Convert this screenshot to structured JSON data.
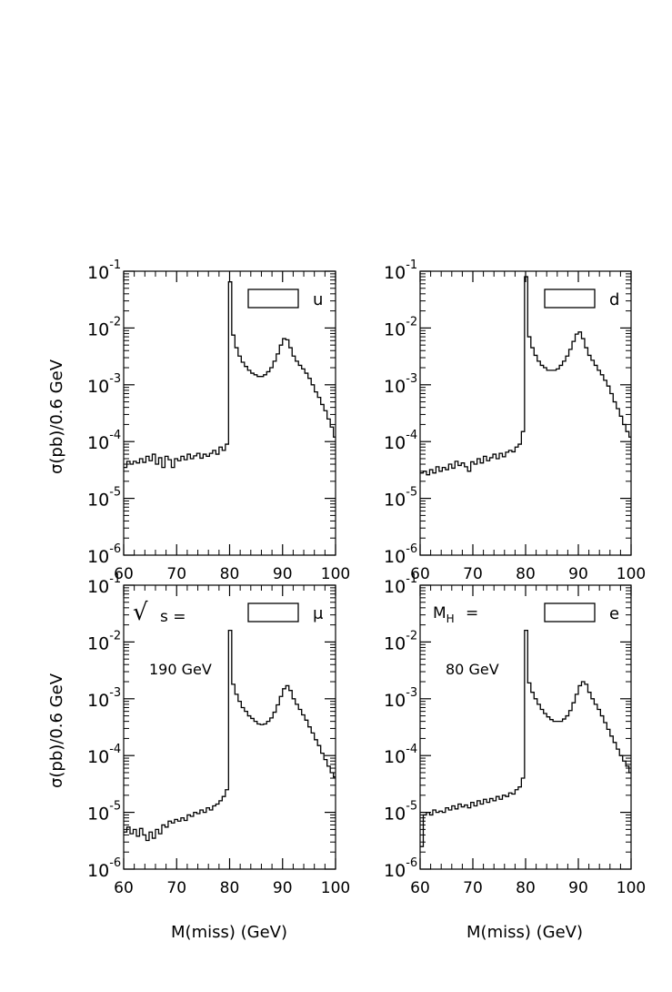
{
  "figure": {
    "ylabel": "σ(pb)/0.6 GeV",
    "xlabel": "M(miss) (GeV)"
  },
  "chart_data": [
    {
      "type": "line",
      "panel": "top-left",
      "label": "u",
      "legend_placement": "top-right",
      "x_ticks": [
        "60",
        "70",
        "80",
        "90",
        "100"
      ],
      "y_ticks": [
        {
          "base": "10",
          "exp": "-6"
        },
        {
          "base": "10",
          "exp": "-5"
        },
        {
          "base": "10",
          "exp": "-4"
        },
        {
          "base": "10",
          "exp": "-3"
        },
        {
          "base": "10",
          "exp": "-2"
        },
        {
          "base": "10",
          "exp": "-1"
        }
      ],
      "xlim": [
        60,
        100
      ],
      "ylim": [
        1e-06,
        0.1
      ],
      "yscale": "log",
      "histtype": "step",
      "x": [
        60.0,
        60.6,
        61.2,
        61.8,
        62.4,
        63.0,
        63.6,
        64.2,
        64.8,
        65.4,
        66.0,
        66.6,
        67.2,
        67.8,
        68.4,
        69.0,
        69.6,
        70.2,
        70.8,
        71.4,
        72.0,
        72.6,
        73.2,
        73.8,
        74.4,
        75.0,
        75.6,
        76.2,
        76.8,
        77.4,
        78.0,
        78.6,
        79.2,
        79.8,
        80.4,
        81.0,
        81.6,
        82.2,
        82.8,
        83.4,
        84.0,
        84.6,
        85.2,
        85.8,
        86.4,
        87.0,
        87.6,
        88.2,
        88.8,
        89.4,
        90.0,
        90.6,
        91.2,
        91.8,
        92.4,
        93.0,
        93.6,
        94.2,
        94.8,
        95.4,
        96.0,
        96.6,
        97.2,
        97.8,
        98.4,
        99.0,
        99.6
      ],
      "values": [
        3.5e-05,
        4.5e-05,
        4e-05,
        4.5e-05,
        4.2e-05,
        5e-05,
        4.3e-05,
        5.5e-05,
        4.6e-05,
        6e-05,
        4e-05,
        5.2e-05,
        3.5e-05,
        5.5e-05,
        4.8e-05,
        3.5e-05,
        5e-05,
        4.6e-05,
        5.5e-05,
        4.8e-05,
        6e-05,
        5e-05,
        5.6e-05,
        6.2e-05,
        5.1e-05,
        6e-05,
        5.5e-05,
        6.2e-05,
        7e-05,
        6e-05,
        8e-05,
        7e-05,
        9e-05,
        0.065,
        0.0075,
        0.0045,
        0.0032,
        0.0025,
        0.0021,
        0.0018,
        0.0016,
        0.0015,
        0.0014,
        0.0014,
        0.0015,
        0.0017,
        0.002,
        0.0026,
        0.0035,
        0.005,
        0.0065,
        0.0062,
        0.0045,
        0.0032,
        0.0026,
        0.0022,
        0.0019,
        0.0016,
        0.0013,
        0.001,
        0.00075,
        0.0006,
        0.00045,
        0.00035,
        0.00025,
        0.00018,
        0.00012
      ]
    },
    {
      "type": "line",
      "panel": "top-right",
      "label": "d",
      "legend_placement": "top-right",
      "x_ticks": [
        "60",
        "70",
        "80",
        "90",
        "100"
      ],
      "y_ticks": [
        {
          "base": "10",
          "exp": "-6"
        },
        {
          "base": "10",
          "exp": "-5"
        },
        {
          "base": "10",
          "exp": "-4"
        },
        {
          "base": "10",
          "exp": "-3"
        },
        {
          "base": "10",
          "exp": "-2"
        },
        {
          "base": "10",
          "exp": "-1"
        }
      ],
      "xlim": [
        60,
        100
      ],
      "ylim": [
        1e-06,
        0.1
      ],
      "yscale": "log",
      "histtype": "step",
      "x": [
        60.0,
        60.6,
        61.2,
        61.8,
        62.4,
        63.0,
        63.6,
        64.2,
        64.8,
        65.4,
        66.0,
        66.6,
        67.2,
        67.8,
        68.4,
        69.0,
        69.6,
        70.2,
        70.8,
        71.4,
        72.0,
        72.6,
        73.2,
        73.8,
        74.4,
        75.0,
        75.6,
        76.2,
        76.8,
        77.4,
        78.0,
        78.6,
        79.2,
        79.8,
        80.4,
        81.0,
        81.6,
        82.2,
        82.8,
        83.4,
        84.0,
        84.6,
        85.2,
        85.8,
        86.4,
        87.0,
        87.6,
        88.2,
        88.8,
        89.4,
        90.0,
        90.6,
        91.2,
        91.8,
        92.4,
        93.0,
        93.6,
        94.2,
        94.8,
        95.4,
        96.0,
        96.6,
        97.2,
        97.8,
        98.4,
        99.0,
        99.6
      ],
      "values": [
        2.8e-05,
        3e-05,
        2.6e-05,
        3.2e-05,
        2.8e-05,
        3.6e-05,
        3e-05,
        3.5e-05,
        3.2e-05,
        4e-05,
        3.4e-05,
        4.5e-05,
        3.8e-05,
        4.2e-05,
        3.6e-05,
        3e-05,
        4.4e-05,
        4e-05,
        5e-05,
        4.2e-05,
        5.5e-05,
        4.6e-05,
        5.2e-05,
        6e-05,
        5e-05,
        6.2e-05,
        5.4e-05,
        6.5e-05,
        7e-05,
        6.6e-05,
        8e-05,
        9e-05,
        0.00015,
        0.08,
        0.007,
        0.0045,
        0.0033,
        0.0026,
        0.0022,
        0.002,
        0.0018,
        0.0018,
        0.0018,
        0.0019,
        0.0022,
        0.0026,
        0.0032,
        0.0042,
        0.0058,
        0.0078,
        0.0085,
        0.0065,
        0.0045,
        0.0033,
        0.0027,
        0.0022,
        0.0018,
        0.0015,
        0.0012,
        0.00095,
        0.0007,
        0.0005,
        0.00038,
        0.00028,
        0.0002,
        0.00015,
        0.00012
      ]
    },
    {
      "type": "line",
      "panel": "bottom-left",
      "label": "μ",
      "legend_placement": "top-right",
      "annotation": {
        "symbol": "√",
        "line1": "s =",
        "line2": "190 GeV"
      },
      "x_ticks": [
        "60",
        "70",
        "80",
        "90",
        "100"
      ],
      "y_ticks": [
        {
          "base": "10",
          "exp": "-6"
        },
        {
          "base": "10",
          "exp": "-5"
        },
        {
          "base": "10",
          "exp": "-4"
        },
        {
          "base": "10",
          "exp": "-3"
        },
        {
          "base": "10",
          "exp": "-2"
        },
        {
          "base": "10",
          "exp": "-1"
        }
      ],
      "xlim": [
        60,
        100
      ],
      "ylim": [
        1e-06,
        0.1
      ],
      "yscale": "log",
      "histtype": "step",
      "x": [
        60.0,
        60.6,
        61.2,
        61.8,
        62.4,
        63.0,
        63.6,
        64.2,
        64.8,
        65.4,
        66.0,
        66.6,
        67.2,
        67.8,
        68.4,
        69.0,
        69.6,
        70.2,
        70.8,
        71.4,
        72.0,
        72.6,
        73.2,
        73.8,
        74.4,
        75.0,
        75.6,
        76.2,
        76.8,
        77.4,
        78.0,
        78.6,
        79.2,
        79.8,
        80.4,
        81.0,
        81.6,
        82.2,
        82.8,
        83.4,
        84.0,
        84.6,
        85.2,
        85.8,
        86.4,
        87.0,
        87.6,
        88.2,
        88.8,
        89.4,
        90.0,
        90.6,
        91.2,
        91.8,
        92.4,
        93.0,
        93.6,
        94.2,
        94.8,
        95.4,
        96.0,
        96.6,
        97.2,
        97.8,
        98.4,
        99.0,
        99.6
      ],
      "values": [
        4.5e-06,
        5.5e-06,
        4.2e-06,
        5e-06,
        3.8e-06,
        5.2e-06,
        4e-06,
        3.2e-06,
        4.5e-06,
        3.5e-06,
        5e-06,
        4.2e-06,
        6e-06,
        5.5e-06,
        7e-06,
        6.5e-06,
        7.5e-06,
        7e-06,
        8e-06,
        7.2e-06,
        9e-06,
        8.5e-06,
        1e-05,
        9.5e-06,
        1.1e-05,
        1e-05,
        1.2e-05,
        1.1e-05,
        1.3e-05,
        1.4e-05,
        1.6e-05,
        1.9e-05,
        2.5e-05,
        0.016,
        0.0018,
        0.0012,
        0.0009,
        0.0007,
        0.0006,
        0.0005,
        0.00045,
        0.0004,
        0.00036,
        0.00035,
        0.00036,
        0.0004,
        0.00046,
        0.00058,
        0.00078,
        0.0011,
        0.0015,
        0.0017,
        0.0014,
        0.001,
        0.0008,
        0.00065,
        0.00052,
        0.00042,
        0.00032,
        0.00025,
        0.00019,
        0.00015,
        0.00011,
        8.5e-05,
        6.5e-05,
        5e-05,
        4.2e-05
      ]
    },
    {
      "type": "line",
      "panel": "bottom-right",
      "label": "e",
      "legend_placement": "top-right",
      "annotation": {
        "symbol": "M",
        "subscript": "H",
        "line1": "=",
        "line2": "80 GeV"
      },
      "x_ticks": [
        "60",
        "70",
        "80",
        "90",
        "100"
      ],
      "y_ticks": [
        {
          "base": "10",
          "exp": "-6"
        },
        {
          "base": "10",
          "exp": "-5"
        },
        {
          "base": "10",
          "exp": "-4"
        },
        {
          "base": "10",
          "exp": "-3"
        },
        {
          "base": "10",
          "exp": "-2"
        },
        {
          "base": "10",
          "exp": "-1"
        }
      ],
      "xlim": [
        60,
        100
      ],
      "ylim": [
        1e-06,
        0.1
      ],
      "yscale": "log",
      "histtype": "step",
      "x": [
        60.0,
        60.6,
        61.2,
        61.8,
        62.4,
        63.0,
        63.6,
        64.2,
        64.8,
        65.4,
        66.0,
        66.6,
        67.2,
        67.8,
        68.4,
        69.0,
        69.6,
        70.2,
        70.8,
        71.4,
        72.0,
        72.6,
        73.2,
        73.8,
        74.4,
        75.0,
        75.6,
        76.2,
        76.8,
        77.4,
        78.0,
        78.6,
        79.2,
        79.8,
        80.4,
        81.0,
        81.6,
        82.2,
        82.8,
        83.4,
        84.0,
        84.6,
        85.2,
        85.8,
        86.4,
        87.0,
        87.6,
        88.2,
        88.8,
        89.4,
        90.0,
        90.6,
        91.2,
        91.8,
        92.4,
        93.0,
        93.6,
        94.2,
        94.8,
        95.4,
        96.0,
        96.6,
        97.2,
        97.8,
        98.4,
        99.0,
        99.6
      ],
      "values": [
        2.5e-06,
        9e-06,
        1e-05,
        9e-06,
        1.1e-05,
        1e-05,
        1.05e-05,
        1e-05,
        1.2e-05,
        1.1e-05,
        1.3e-05,
        1.15e-05,
        1.4e-05,
        1.25e-05,
        1.35e-05,
        1.2e-05,
        1.5e-05,
        1.3e-05,
        1.6e-05,
        1.4e-05,
        1.7e-05,
        1.5e-05,
        1.75e-05,
        1.6e-05,
        1.9e-05,
        1.7e-05,
        2e-05,
        1.9e-05,
        2.2e-05,
        2.1e-05,
        2.5e-05,
        2.8e-05,
        4e-05,
        0.016,
        0.0019,
        0.0013,
        0.001,
        0.0008,
        0.00065,
        0.00055,
        0.00048,
        0.00043,
        0.0004,
        0.0004,
        0.0004,
        0.00044,
        0.0005,
        0.00062,
        0.00085,
        0.0012,
        0.0017,
        0.002,
        0.0018,
        0.0013,
        0.001,
        0.0008,
        0.00065,
        0.0005,
        0.00038,
        0.00029,
        0.00022,
        0.00017,
        0.00013,
        0.0001,
        8e-05,
        6.5e-05,
        5e-05
      ]
    }
  ]
}
